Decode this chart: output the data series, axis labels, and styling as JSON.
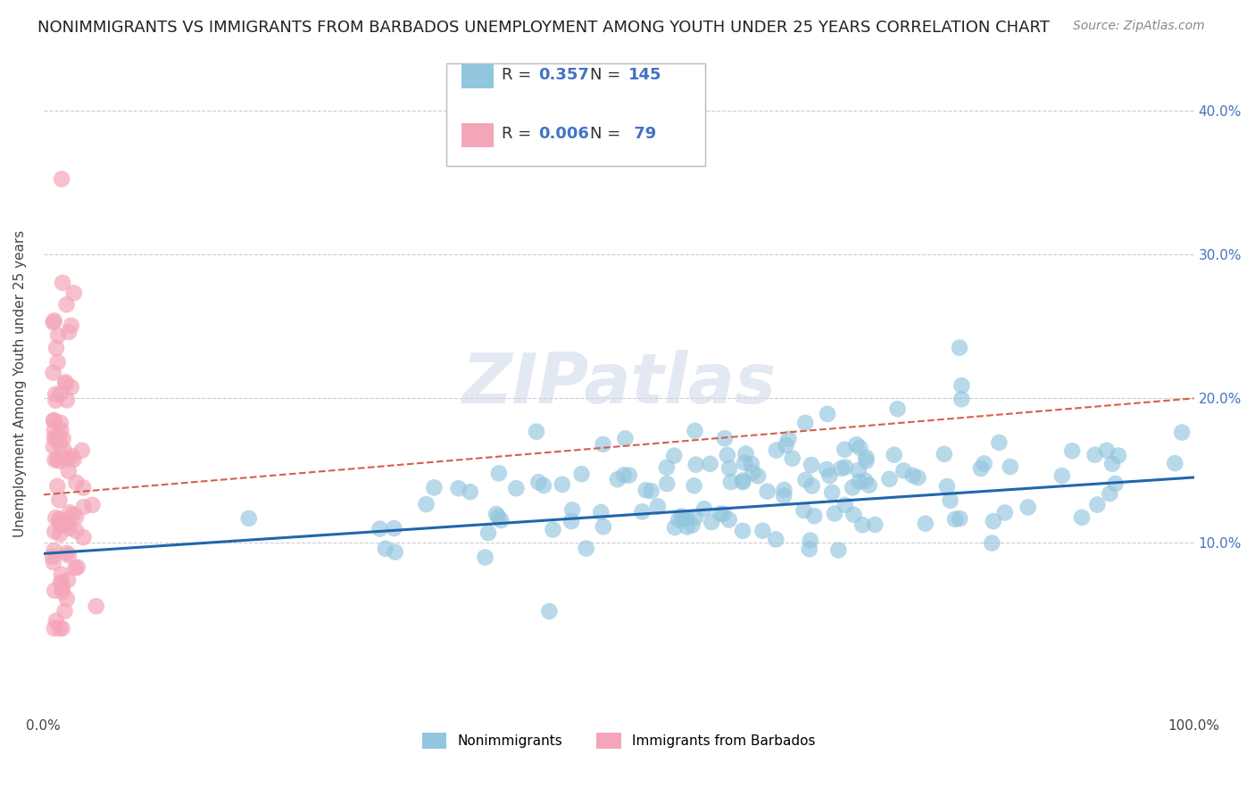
{
  "title": "NONIMMIGRANTS VS IMMIGRANTS FROM BARBADOS UNEMPLOYMENT AMONG YOUTH UNDER 25 YEARS CORRELATION CHART",
  "source": "Source: ZipAtlas.com",
  "ylabel": "Unemployment Among Youth under 25 years",
  "xlim": [
    0,
    1.0
  ],
  "ylim": [
    -0.02,
    0.44
  ],
  "x_ticks": [
    0.0,
    1.0
  ],
  "x_tick_labels": [
    "0.0%",
    "100.0%"
  ],
  "y_ticks": [
    0.1,
    0.2,
    0.3,
    0.4
  ],
  "y_tick_labels": [
    "10.0%",
    "20.0%",
    "30.0%",
    "40.0%"
  ],
  "nonimmigrant_color": "#92c5de",
  "immigrant_color": "#f4a6b8",
  "nonimmigrant_R": 0.357,
  "nonimmigrant_N": 145,
  "immigrant_R": 0.006,
  "immigrant_N": 79,
  "trendline_nonimmigrant_color": "#2166ac",
  "trendline_immigrant_color": "#d6604d",
  "watermark": "ZIPatlas",
  "background_color": "#ffffff",
  "grid_color": "#cccccc",
  "title_fontsize": 13,
  "axis_label_fontsize": 11,
  "tick_label_fontsize": 11,
  "source_fontsize": 10
}
